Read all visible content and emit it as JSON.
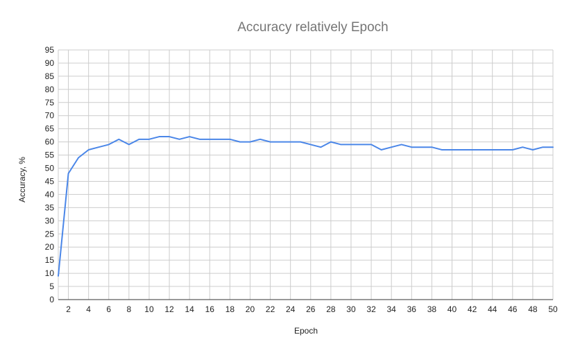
{
  "chart_data": {
    "type": "line",
    "title": "Accuracy relatively Epoch",
    "xlabel": "Epoch",
    "ylabel": "Accuracy, %",
    "xlim": [
      1,
      50
    ],
    "ylim": [
      0,
      95
    ],
    "x_ticks": [
      2,
      4,
      6,
      8,
      10,
      12,
      14,
      16,
      18,
      20,
      22,
      24,
      26,
      28,
      30,
      32,
      34,
      36,
      38,
      40,
      42,
      44,
      46,
      48,
      50
    ],
    "y_ticks": [
      0,
      5,
      10,
      15,
      20,
      25,
      30,
      35,
      40,
      45,
      50,
      55,
      60,
      65,
      70,
      75,
      80,
      85,
      90,
      95
    ],
    "grid": true,
    "line_color": "#4a86e8",
    "series": [
      {
        "x": [
          1,
          2,
          3,
          4,
          5,
          6,
          7,
          8,
          9,
          10,
          11,
          12,
          13,
          14,
          15,
          16,
          17,
          18,
          19,
          20,
          21,
          22,
          23,
          24,
          25,
          26,
          27,
          28,
          29,
          30,
          31,
          32,
          33,
          34,
          35,
          36,
          37,
          38,
          39,
          40,
          41,
          42,
          43,
          44,
          45,
          46,
          47,
          48,
          49,
          50
        ],
        "values": [
          9,
          48,
          54,
          57,
          58,
          59,
          61,
          59,
          61,
          61,
          62,
          62,
          61,
          62,
          61,
          61,
          61,
          61,
          60,
          60,
          61,
          60,
          60,
          60,
          60,
          59,
          58,
          60,
          59,
          59,
          59,
          59,
          57,
          58,
          59,
          58,
          58,
          58,
          57,
          57,
          57,
          57,
          57,
          57,
          57,
          57,
          58,
          57,
          58,
          58
        ]
      }
    ]
  }
}
